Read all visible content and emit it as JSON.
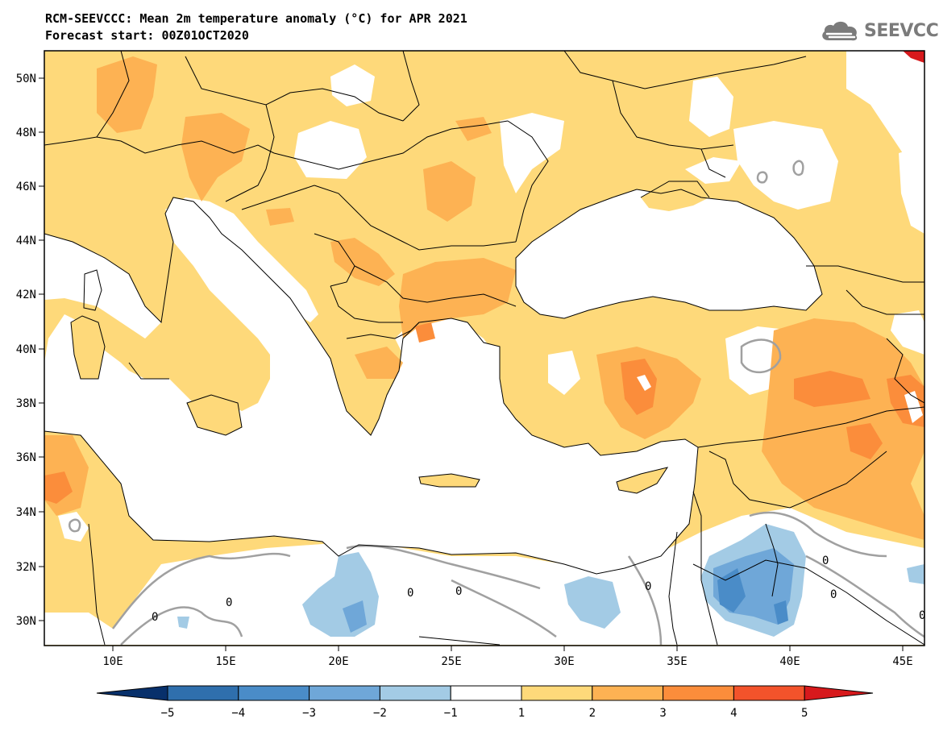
{
  "header": {
    "title_line1": "RCM-SEEVCCC: Mean 2m temperature anomaly (°C) for APR 2021",
    "title_line2": "Forecast start: 00Z01OCT2020",
    "logo_text": "SEEVCCC",
    "logo_icon": "cloud-icon"
  },
  "map": {
    "lat_labels": [
      "50N",
      "48N",
      "46N",
      "44N",
      "42N",
      "40N",
      "38N",
      "36N",
      "34N",
      "32N",
      "30N"
    ],
    "lon_labels": [
      "10E",
      "15E",
      "20E",
      "25E",
      "30E",
      "35E",
      "40E",
      "45E"
    ],
    "contour_labels": [
      "0",
      "0",
      "0",
      "0",
      "0",
      "0",
      "0",
      "0"
    ]
  },
  "colorbar": {
    "labels": [
      "−5",
      "−4",
      "−3",
      "−2",
      "−1",
      "1",
      "2",
      "3",
      "4",
      "5"
    ],
    "colors": [
      "#08306b",
      "#2f6fad",
      "#4a8cc8",
      "#6fa7d8",
      "#a3cbe5",
      "#ffffff",
      "#fed97a",
      "#fdb253",
      "#fb8d3b",
      "#f3532b",
      "#d7191c"
    ]
  },
  "colors": {
    "land_warm": "#fed97a",
    "anomaly_2_3": "#fdb253",
    "anomaly_3_4": "#fb8d3b",
    "anomaly_4_5": "#f3532b",
    "cool_1": "#a3cbe5",
    "cool_2": "#6fa7d8",
    "cool_3": "#4a8cc8",
    "border": "#000000",
    "zero_contour": "#a0a0a0"
  }
}
